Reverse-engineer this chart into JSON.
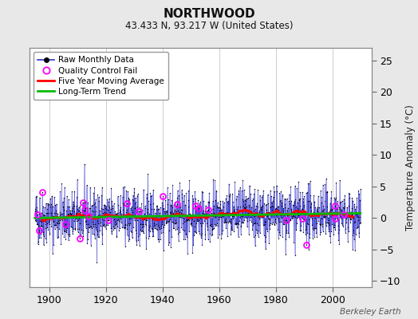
{
  "title": "NORTHWOOD",
  "subtitle": "43.433 N, 93.217 W (United States)",
  "credit": "Berkeley Earth",
  "ylabel_right": "Temperature Anomaly (°C)",
  "xlim": [
    1893,
    2014
  ],
  "ylim": [
    -11,
    27
  ],
  "yticks": [
    -10,
    -5,
    0,
    5,
    10,
    15,
    20,
    25
  ],
  "xticks": [
    1900,
    1920,
    1940,
    1960,
    1980,
    2000
  ],
  "seed": 42,
  "n_years": 115,
  "start_year": 1895,
  "raw_color": "#3333cc",
  "raw_marker_color": "#000000",
  "qc_fail_color": "#ff00ff",
  "moving_avg_color": "#ff0000",
  "trend_color": "#00bb00",
  "bg_color": "#e8e8e8",
  "plot_bg_color": "#ffffff",
  "grid_color": "#bbbbbb"
}
